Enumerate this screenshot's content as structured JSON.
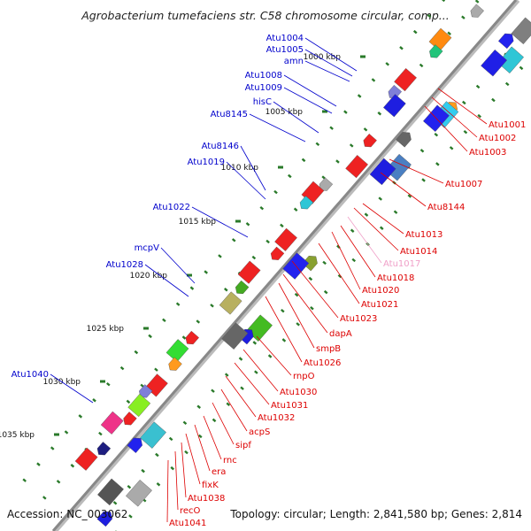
{
  "title": "Agrobacterium tumefaciens str. C58 chromosome circular, comp...",
  "footer": {
    "accession": "Accession: NC_003062",
    "stats": "Topology: circular; Length: 2,841,580 bp; Genes: 2,814"
  },
  "colors": {
    "backbone": "#888888",
    "outer_label": "#0000cc",
    "inner_label": "#dd0000",
    "pink_label": "#f0a0c8",
    "tick": "#2a7a2a"
  },
  "kbp_ticks": [
    "1000 kbp",
    "1005 kbp",
    "1010 kbp",
    "1015 kbp",
    "1020 kbp",
    "1025 kbp",
    "1030 kbp",
    "1035 kbp"
  ],
  "outer_labels": [
    "Atu1004",
    "Atu1005",
    "amn",
    "Atu1008",
    "Atu1009",
    "hisC",
    "Atu8145",
    "Atu8146",
    "Atu1019",
    "Atu1022",
    "mcpV",
    "Atu1028",
    "Atu1040"
  ],
  "inner_labels": [
    "Atu1001",
    "Atu1002",
    "Atu1003",
    "Atu1007",
    "Atu8144",
    "Atu1013",
    "Atu1014",
    "Atu1017",
    "Atu1018",
    "Atu1020",
    "Atu1021",
    "Atu1023",
    "dapA",
    "smpB",
    "Atu1026",
    "rnpO",
    "Atu1030",
    "Atu1031",
    "Atu1032",
    "acpS",
    "sipf",
    "rnc",
    "era",
    "fixK",
    "Atu1038",
    "recO",
    "Atu1041"
  ],
  "pink_labels": [
    "Atu1017"
  ]
}
